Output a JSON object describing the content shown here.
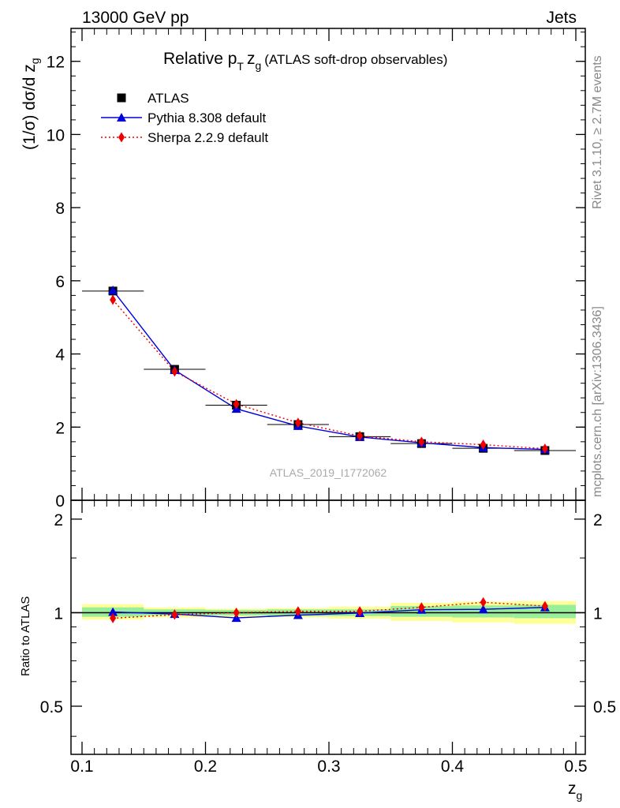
{
  "header": {
    "energy_label": "13000 GeV pp",
    "category_label": "Jets"
  },
  "side_text": {
    "rivet": "Rivet 3.1.10, ≥ 2.7M events",
    "source": "mcplots.cern.ch [arXiv:1306.3436]"
  },
  "chart_data": {
    "type": "line",
    "title_prefix": "Relative p",
    "title_sub": "T",
    "title_var": "z",
    "title_var_sub": "g",
    "title_suffix": "(ATLAS soft-drop observables)",
    "watermark": "ATLAS_2019_I1772062",
    "ylabel_main_prefix": "(1/σ) dσ/d z",
    "ylabel_main_sub": "g",
    "ylabel_ratio": "Ratio to ATLAS",
    "xlabel": "z",
    "xlabel_sub": "g",
    "xlim": [
      0.1,
      0.5
    ],
    "ylim_main": [
      0,
      12.9
    ],
    "ylim_ratio": [
      0.35,
      2.3
    ],
    "x_ticks": [
      0.1,
      0.2,
      0.3,
      0.4,
      0.5
    ],
    "x_tick_labels": [
      "0.1",
      "0.2",
      "0.3",
      "0.4",
      "0.5"
    ],
    "main_y_ticks": [
      0,
      2,
      4,
      6,
      8,
      10,
      12
    ],
    "main_y_tick_labels": [
      "0",
      "2",
      "4",
      "6",
      "8",
      "10",
      "12"
    ],
    "ratio_y_ticks": [
      0.5,
      1,
      2
    ],
    "ratio_y_tick_labels": [
      "0.5",
      "1",
      "2"
    ],
    "bin_edges": [
      0.1,
      0.15,
      0.2,
      0.25,
      0.3,
      0.35,
      0.4,
      0.45,
      0.5
    ],
    "x": [
      0.125,
      0.175,
      0.225,
      0.275,
      0.325,
      0.375,
      0.425,
      0.475
    ],
    "series": [
      {
        "name": "ATLAS",
        "color": "#000000",
        "marker": "square",
        "values": [
          5.72,
          3.58,
          2.6,
          2.07,
          1.74,
          1.55,
          1.42,
          1.36
        ],
        "ratio": [
          1,
          1,
          1,
          1,
          1,
          1,
          1,
          1
        ]
      },
      {
        "name": "Pythia 8.308 default",
        "color": "#0000dd",
        "marker": "triangle",
        "values": [
          5.74,
          3.56,
          2.5,
          2.03,
          1.73,
          1.57,
          1.44,
          1.39
        ],
        "ratio": [
          1.005,
          0.99,
          0.962,
          0.982,
          0.997,
          1.022,
          1.025,
          1.04
        ]
      },
      {
        "name": "Sherpa 2.2.9 default",
        "color": "#ee0000",
        "marker": "diamond",
        "values": [
          5.48,
          3.52,
          2.63,
          2.12,
          1.76,
          1.6,
          1.52,
          1.41
        ],
        "ratio": [
          0.96,
          0.985,
          1.0,
          1.01,
          1.01,
          1.04,
          1.08,
          1.05
        ]
      }
    ],
    "uncertainty_stat_ratio": [
      [
        0.97,
        1.04
      ],
      [
        0.98,
        1.025
      ],
      [
        0.98,
        1.02
      ],
      [
        0.975,
        1.025
      ],
      [
        0.975,
        1.025
      ],
      [
        0.97,
        1.05
      ],
      [
        0.965,
        1.055
      ],
      [
        0.96,
        1.06
      ]
    ],
    "uncertainty_total_ratio": [
      [
        0.95,
        1.065
      ],
      [
        0.965,
        1.04
      ],
      [
        0.97,
        1.03
      ],
      [
        0.965,
        1.035
      ],
      [
        0.955,
        1.045
      ],
      [
        0.94,
        1.075
      ],
      [
        0.93,
        1.085
      ],
      [
        0.92,
        1.09
      ]
    ],
    "band_colors": {
      "stat": "#99ee99",
      "total": "#ffff99"
    },
    "legend_position": "top-left"
  }
}
